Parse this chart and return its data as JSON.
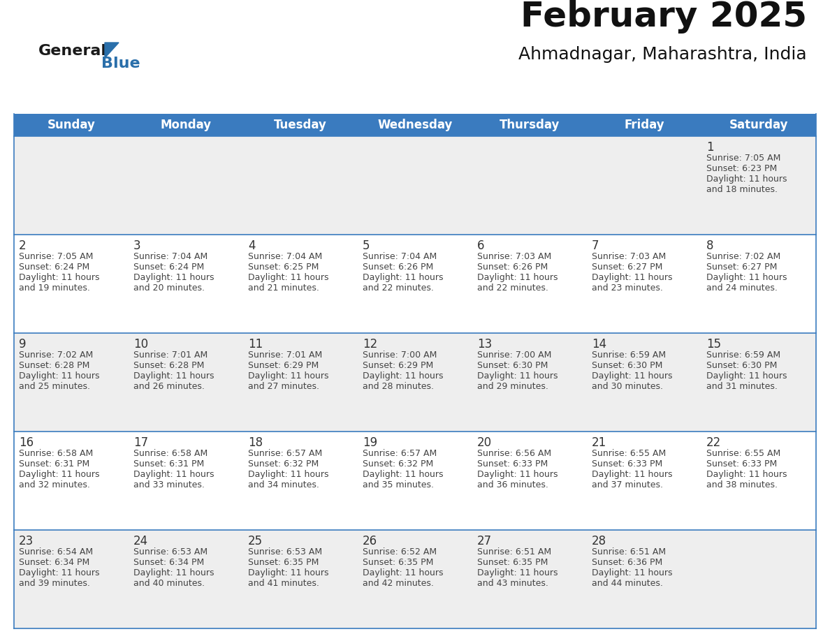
{
  "title": "February 2025",
  "subtitle": "Ahmadnagar, Maharashtra, India",
  "header_bg_color": "#3a7bbf",
  "header_text_color": "#ffffff",
  "days_of_week": [
    "Sunday",
    "Monday",
    "Tuesday",
    "Wednesday",
    "Thursday",
    "Friday",
    "Saturday"
  ],
  "row_bg_even": "#eeeeee",
  "row_bg_odd": "#ffffff",
  "border_color": "#3a7bbf",
  "cell_border_color": "#cccccc",
  "text_color": "#444444",
  "day_number_color": "#333333",
  "calendar_data": [
    [
      null,
      null,
      null,
      null,
      null,
      null,
      {
        "day": 1,
        "sunrise": "7:05 AM",
        "sunset": "6:23 PM",
        "daylight_hours": 11,
        "daylight_minutes": 18
      }
    ],
    [
      {
        "day": 2,
        "sunrise": "7:05 AM",
        "sunset": "6:24 PM",
        "daylight_hours": 11,
        "daylight_minutes": 19
      },
      {
        "day": 3,
        "sunrise": "7:04 AM",
        "sunset": "6:24 PM",
        "daylight_hours": 11,
        "daylight_minutes": 20
      },
      {
        "day": 4,
        "sunrise": "7:04 AM",
        "sunset": "6:25 PM",
        "daylight_hours": 11,
        "daylight_minutes": 21
      },
      {
        "day": 5,
        "sunrise": "7:04 AM",
        "sunset": "6:26 PM",
        "daylight_hours": 11,
        "daylight_minutes": 22
      },
      {
        "day": 6,
        "sunrise": "7:03 AM",
        "sunset": "6:26 PM",
        "daylight_hours": 11,
        "daylight_minutes": 22
      },
      {
        "day": 7,
        "sunrise": "7:03 AM",
        "sunset": "6:27 PM",
        "daylight_hours": 11,
        "daylight_minutes": 23
      },
      {
        "day": 8,
        "sunrise": "7:02 AM",
        "sunset": "6:27 PM",
        "daylight_hours": 11,
        "daylight_minutes": 24
      }
    ],
    [
      {
        "day": 9,
        "sunrise": "7:02 AM",
        "sunset": "6:28 PM",
        "daylight_hours": 11,
        "daylight_minutes": 25
      },
      {
        "day": 10,
        "sunrise": "7:01 AM",
        "sunset": "6:28 PM",
        "daylight_hours": 11,
        "daylight_minutes": 26
      },
      {
        "day": 11,
        "sunrise": "7:01 AM",
        "sunset": "6:29 PM",
        "daylight_hours": 11,
        "daylight_minutes": 27
      },
      {
        "day": 12,
        "sunrise": "7:00 AM",
        "sunset": "6:29 PM",
        "daylight_hours": 11,
        "daylight_minutes": 28
      },
      {
        "day": 13,
        "sunrise": "7:00 AM",
        "sunset": "6:30 PM",
        "daylight_hours": 11,
        "daylight_minutes": 29
      },
      {
        "day": 14,
        "sunrise": "6:59 AM",
        "sunset": "6:30 PM",
        "daylight_hours": 11,
        "daylight_minutes": 30
      },
      {
        "day": 15,
        "sunrise": "6:59 AM",
        "sunset": "6:30 PM",
        "daylight_hours": 11,
        "daylight_minutes": 31
      }
    ],
    [
      {
        "day": 16,
        "sunrise": "6:58 AM",
        "sunset": "6:31 PM",
        "daylight_hours": 11,
        "daylight_minutes": 32
      },
      {
        "day": 17,
        "sunrise": "6:58 AM",
        "sunset": "6:31 PM",
        "daylight_hours": 11,
        "daylight_minutes": 33
      },
      {
        "day": 18,
        "sunrise": "6:57 AM",
        "sunset": "6:32 PM",
        "daylight_hours": 11,
        "daylight_minutes": 34
      },
      {
        "day": 19,
        "sunrise": "6:57 AM",
        "sunset": "6:32 PM",
        "daylight_hours": 11,
        "daylight_minutes": 35
      },
      {
        "day": 20,
        "sunrise": "6:56 AM",
        "sunset": "6:33 PM",
        "daylight_hours": 11,
        "daylight_minutes": 36
      },
      {
        "day": 21,
        "sunrise": "6:55 AM",
        "sunset": "6:33 PM",
        "daylight_hours": 11,
        "daylight_minutes": 37
      },
      {
        "day": 22,
        "sunrise": "6:55 AM",
        "sunset": "6:33 PM",
        "daylight_hours": 11,
        "daylight_minutes": 38
      }
    ],
    [
      {
        "day": 23,
        "sunrise": "6:54 AM",
        "sunset": "6:34 PM",
        "daylight_hours": 11,
        "daylight_minutes": 39
      },
      {
        "day": 24,
        "sunrise": "6:53 AM",
        "sunset": "6:34 PM",
        "daylight_hours": 11,
        "daylight_minutes": 40
      },
      {
        "day": 25,
        "sunrise": "6:53 AM",
        "sunset": "6:35 PM",
        "daylight_hours": 11,
        "daylight_minutes": 41
      },
      {
        "day": 26,
        "sunrise": "6:52 AM",
        "sunset": "6:35 PM",
        "daylight_hours": 11,
        "daylight_minutes": 42
      },
      {
        "day": 27,
        "sunrise": "6:51 AM",
        "sunset": "6:35 PM",
        "daylight_hours": 11,
        "daylight_minutes": 43
      },
      {
        "day": 28,
        "sunrise": "6:51 AM",
        "sunset": "6:36 PM",
        "daylight_hours": 11,
        "daylight_minutes": 44
      },
      null
    ]
  ],
  "logo_general_color": "#1a1a1a",
  "logo_blue_color": "#2a6faa",
  "fig_bg_color": "#ffffff",
  "title_fontsize": 36,
  "subtitle_fontsize": 18,
  "header_fontsize": 12,
  "day_num_fontsize": 12,
  "cell_text_fontsize": 9
}
